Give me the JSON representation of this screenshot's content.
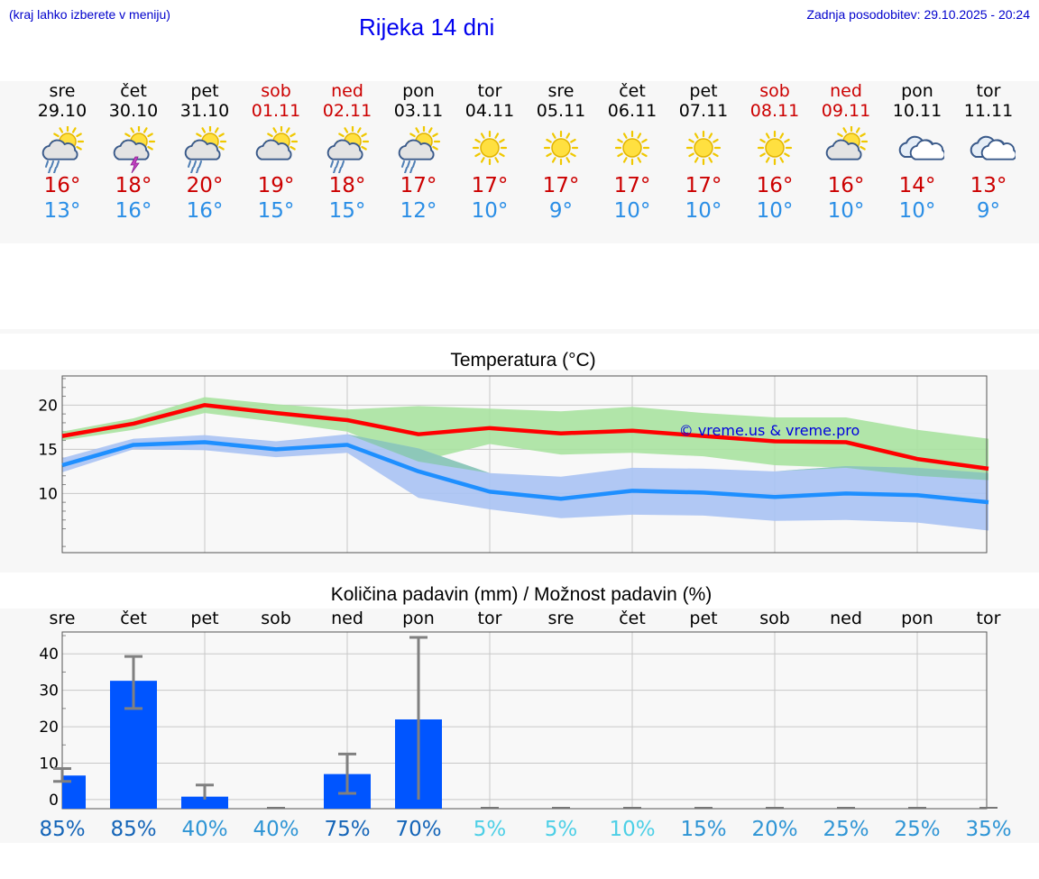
{
  "header": {
    "note": "(kraj lahko izberete v meniju)",
    "title": "Rijeka 14 dni",
    "updated": "Zadnja posodobitev: 29.10.2025 - 20:24"
  },
  "days": [
    {
      "name": "sre",
      "date": "29.10",
      "weekend": false,
      "icon": "sun-cloud-rain-icon",
      "max": "16°",
      "min": "13°"
    },
    {
      "name": "čet",
      "date": "30.10",
      "weekend": false,
      "icon": "sun-cloud-thunder-icon",
      "max": "18°",
      "min": "16°"
    },
    {
      "name": "pet",
      "date": "31.10",
      "weekend": false,
      "icon": "sun-cloud-rain-icon",
      "max": "20°",
      "min": "16°"
    },
    {
      "name": "sob",
      "date": "01.11",
      "weekend": true,
      "icon": "sun-cloud-icon",
      "max": "19°",
      "min": "15°"
    },
    {
      "name": "ned",
      "date": "02.11",
      "weekend": true,
      "icon": "sun-cloud-rain-icon",
      "max": "18°",
      "min": "15°"
    },
    {
      "name": "pon",
      "date": "03.11",
      "weekend": false,
      "icon": "sun-cloud-rain-icon",
      "max": "17°",
      "min": "12°"
    },
    {
      "name": "tor",
      "date": "04.11",
      "weekend": false,
      "icon": "sun-icon",
      "max": "17°",
      "min": "10°"
    },
    {
      "name": "sre",
      "date": "05.11",
      "weekend": false,
      "icon": "sun-icon",
      "max": "17°",
      "min": "9°"
    },
    {
      "name": "čet",
      "date": "06.11",
      "weekend": false,
      "icon": "sun-icon",
      "max": "17°",
      "min": "10°"
    },
    {
      "name": "pet",
      "date": "07.11",
      "weekend": false,
      "icon": "sun-icon",
      "max": "17°",
      "min": "10°"
    },
    {
      "name": "sob",
      "date": "08.11",
      "weekend": true,
      "icon": "sun-icon",
      "max": "16°",
      "min": "10°"
    },
    {
      "name": "ned",
      "date": "09.11",
      "weekend": true,
      "icon": "sun-cloud-icon",
      "max": "16°",
      "min": "10°"
    },
    {
      "name": "pon",
      "date": "10.11",
      "weekend": false,
      "icon": "cloud-icon",
      "max": "14°",
      "min": "10°"
    },
    {
      "name": "tor",
      "date": "11.11",
      "weekend": false,
      "icon": "cloud-icon",
      "max": "13°",
      "min": "9°"
    }
  ],
  "colors": {
    "max_line": "#ff0000",
    "min_line": "#1e8fff",
    "max_band": "#a8e2a0",
    "min_band": "#a9c2f3",
    "overlap_band": "#84c8a8",
    "precip_bar": "#0055ff",
    "error_bar": "#808080",
    "weekend_text": "#cc0000",
    "title_blue": "#0000ee"
  },
  "chart_data": [
    {
      "type": "line",
      "title": "Temperatura (°C)",
      "watermark": "© vreme.us & vreme.pro",
      "x": [
        0,
        1,
        2,
        3,
        4,
        5,
        6,
        7,
        8,
        9,
        10,
        11,
        12,
        13
      ],
      "ylim": [
        3.3,
        23.3
      ],
      "yticks": [
        10,
        15,
        20
      ],
      "series": [
        {
          "name": "max",
          "values": [
            16.5,
            17.9,
            20.0,
            19.1,
            18.3,
            16.7,
            17.4,
            16.8,
            17.1,
            16.5,
            15.9,
            15.8,
            13.9,
            12.8
          ],
          "band_low": [
            16.0,
            17.2,
            19.1,
            18.1,
            17.0,
            13.6,
            15.6,
            14.4,
            14.6,
            14.2,
            13.2,
            12.9,
            12.0,
            11.5
          ],
          "band_high": [
            17.0,
            18.5,
            20.9,
            20.1,
            19.5,
            19.9,
            19.6,
            19.3,
            19.8,
            19.1,
            18.6,
            18.6,
            17.2,
            16.2
          ]
        },
        {
          "name": "min",
          "values": [
            13.2,
            15.5,
            15.8,
            15.0,
            15.5,
            12.5,
            10.2,
            9.4,
            10.3,
            10.1,
            9.6,
            10.0,
            9.8,
            9.0
          ],
          "band_low": [
            12.4,
            15.0,
            14.9,
            14.1,
            14.6,
            9.5,
            8.2,
            7.2,
            7.6,
            7.5,
            6.9,
            7.0,
            6.7,
            5.8
          ],
          "band_high": [
            14.0,
            16.2,
            16.6,
            15.9,
            16.7,
            15.1,
            12.3,
            11.9,
            12.9,
            12.8,
            12.5,
            13.1,
            12.9,
            12.3
          ]
        }
      ]
    },
    {
      "type": "bar",
      "title": "Količina padavin (mm) / Možnost padavin (%)",
      "categories": [
        "sre",
        "čet",
        "pet",
        "sob",
        "ned",
        "pon",
        "tor",
        "sre",
        "čet",
        "pet",
        "sob",
        "ned",
        "pon",
        "tor"
      ],
      "ylim": [
        -2.5,
        46
      ],
      "yticks": [
        0,
        10,
        20,
        30,
        40
      ],
      "values": [
        6.6,
        32.6,
        0.8,
        0,
        7.0,
        22.0,
        0,
        0,
        0,
        0,
        0,
        0,
        0,
        0
      ],
      "err_low": [
        5,
        25,
        0,
        0,
        1.7,
        0,
        0,
        0,
        0,
        0,
        0,
        0,
        0,
        0
      ],
      "err_high": [
        8.5,
        39.3,
        4,
        0,
        12.5,
        44.5,
        0,
        0,
        0,
        0,
        0,
        0,
        0,
        0
      ],
      "probabilities": [
        "85%",
        "85%",
        "40%",
        "40%",
        "75%",
        "70%",
        "5%",
        "5%",
        "10%",
        "15%",
        "20%",
        "25%",
        "25%",
        "35%"
      ],
      "prob_colors": [
        "#1565b8",
        "#1565b8",
        "#2f95d5",
        "#2f95d5",
        "#1565b8",
        "#1565b8",
        "#4dcfe6",
        "#4dcfe6",
        "#4dcfe6",
        "#2f95d5",
        "#2f95d5",
        "#2f95d5",
        "#2f95d5",
        "#2f95d5"
      ]
    }
  ]
}
